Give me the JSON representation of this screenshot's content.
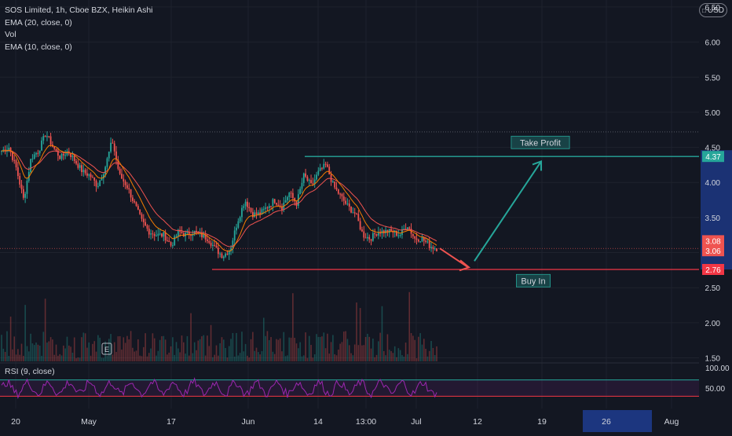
{
  "legend": {
    "title": "SOS Limited, 1h, Cboe BZX, Heikin Ashi",
    "ema20": "EMA (20, close, 0)",
    "vol": "Vol",
    "ema10": "EMA (10, close, 0)"
  },
  "currency_button": "USD",
  "rsi_label": "RSI (9, close)",
  "annotations": {
    "take_profit": "Take Profit",
    "buy_in": "Buy In",
    "event_marker": "E"
  },
  "colors": {
    "background": "#131722",
    "up": "#26a69a",
    "down": "#ef5350",
    "ema20": "#ef5350",
    "ema10": "#f57c00",
    "take_profit": "#26a69a",
    "buy_in": "#f23645",
    "rsi": "#9c27b0",
    "price_highlight": "#1e3a8a"
  },
  "chart_data": {
    "type": "candlestick",
    "x_ticks": [
      "20",
      "May",
      "17",
      "Jun",
      "14",
      "13:00",
      "Jul",
      "12",
      "19",
      "26",
      "Aug"
    ],
    "y_ticks": [
      "6.50",
      "6.00",
      "5.50",
      "5.00",
      "4.50",
      "4.00",
      "3.50",
      "3.00",
      "2.50",
      "2.00",
      "1.50"
    ],
    "ylim": [
      1.45,
      6.6
    ],
    "price_labels": [
      {
        "value": 4.37,
        "label": "4.37",
        "color": "#26a69a"
      },
      {
        "value": 3.08,
        "label": "3.08",
        "color": "#ef5350"
      },
      {
        "value": 3.06,
        "label": "3.06",
        "color": "#ef5350"
      },
      {
        "value": 2.76,
        "label": "2.76",
        "color": "#f23645"
      }
    ],
    "take_profit_level": 4.37,
    "buy_in_level": 2.76,
    "close_path": [
      4.45,
      4.5,
      4.2,
      3.75,
      4.35,
      4.45,
      4.7,
      4.5,
      4.35,
      4.45,
      4.3,
      4.15,
      4.1,
      3.95,
      4.2,
      4.6,
      4.1,
      3.95,
      3.7,
      3.45,
      3.3,
      3.25,
      3.25,
      3.1,
      3.3,
      3.25,
      3.3,
      3.25,
      3.2,
      3.05,
      2.95,
      3.05,
      3.45,
      3.75,
      3.55,
      3.55,
      3.65,
      3.75,
      3.65,
      3.85,
      3.7,
      4.1,
      3.95,
      4.15,
      4.25,
      3.95,
      3.8,
      3.65,
      3.55,
      3.25,
      3.2,
      3.3,
      3.3,
      3.3,
      3.25,
      3.4,
      3.2,
      3.2,
      3.1,
      3.06
    ],
    "projection": {
      "down_to": 2.79,
      "up_to": 4.3
    },
    "rsi": {
      "ylim": [
        0,
        100
      ],
      "y_ticks": [
        "100.00",
        "50.00"
      ],
      "bands": [
        70,
        30
      ]
    }
  }
}
